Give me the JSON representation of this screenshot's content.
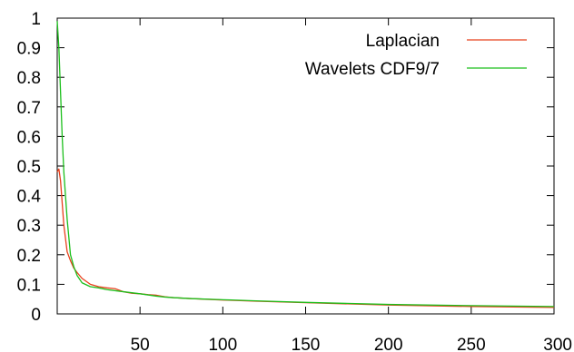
{
  "chart_data": {
    "type": "line",
    "title": "",
    "xlabel": "",
    "ylabel": "",
    "xlim": [
      0,
      300
    ],
    "ylim": [
      0,
      1
    ],
    "xticks": [
      50,
      100,
      150,
      200,
      250,
      300
    ],
    "yticks": [
      0,
      0.1,
      0.2,
      0.3,
      0.4,
      0.5,
      0.6,
      0.7,
      0.8,
      0.9,
      1
    ],
    "xtick_labels": [
      "50",
      "100",
      "150",
      "200",
      "250",
      "300"
    ],
    "ytick_labels": [
      "0",
      "0.1",
      "0.2",
      "0.3",
      "0.4",
      "0.5",
      "0.6",
      "0.7",
      "0.8",
      "0.9",
      "1"
    ],
    "grid": false,
    "legend_position": "top-right",
    "series": [
      {
        "name": "Laplacian",
        "color": "#e8401c",
        "x": [
          0,
          1,
          2,
          4,
          6,
          8,
          10,
          12,
          15,
          20,
          25,
          30,
          35,
          40,
          45,
          50,
          55,
          60,
          65,
          70,
          80,
          100,
          120,
          150,
          200,
          250,
          300
        ],
        "y": [
          0.48,
          0.49,
          0.45,
          0.3,
          0.21,
          0.18,
          0.155,
          0.14,
          0.12,
          0.1,
          0.092,
          0.088,
          0.085,
          0.075,
          0.07,
          0.068,
          0.065,
          0.063,
          0.058,
          0.055,
          0.052,
          0.047,
          0.043,
          0.038,
          0.03,
          0.025,
          0.022
        ]
      },
      {
        "name": "Wavelets CDF9/7",
        "color": "#1cbf1c",
        "x": [
          0,
          1,
          2,
          3,
          4,
          6,
          8,
          10,
          12,
          15,
          20,
          25,
          30,
          40,
          50,
          60,
          65,
          70,
          80,
          100,
          120,
          150,
          200,
          250,
          300
        ],
        "y": [
          0.99,
          0.9,
          0.75,
          0.6,
          0.48,
          0.32,
          0.2,
          0.16,
          0.13,
          0.105,
          0.092,
          0.088,
          0.082,
          0.075,
          0.068,
          0.06,
          0.057,
          0.055,
          0.052,
          0.048,
          0.044,
          0.039,
          0.032,
          0.028,
          0.025
        ]
      }
    ]
  }
}
